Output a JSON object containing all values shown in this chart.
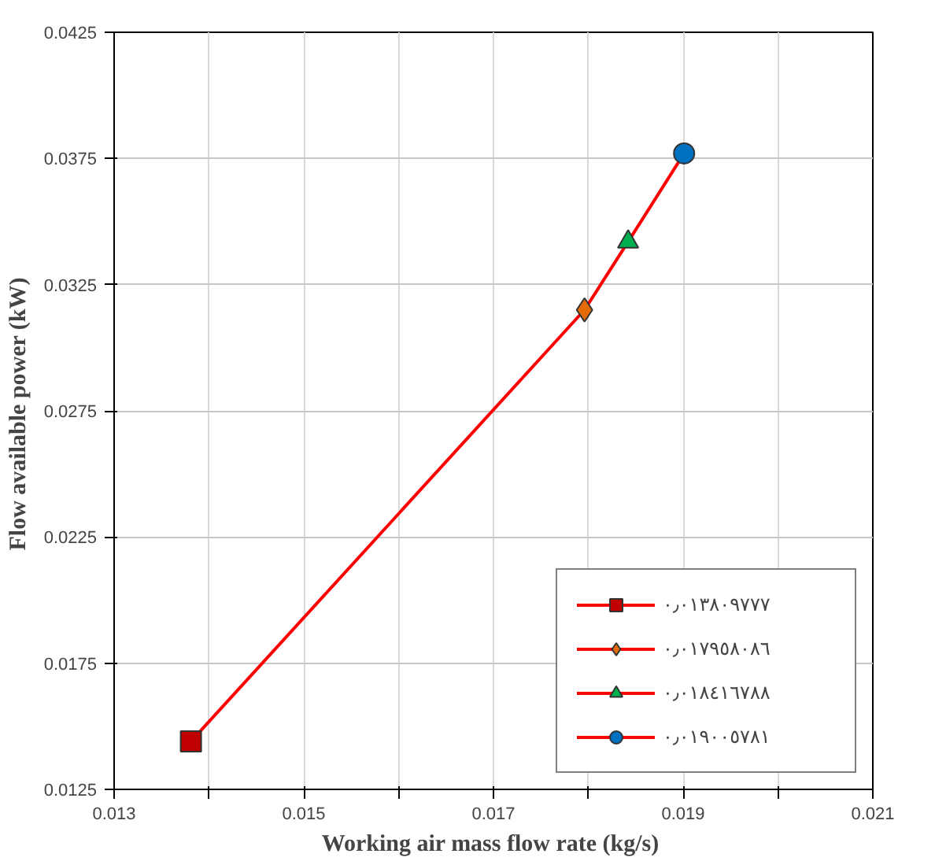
{
  "chart_data": {
    "type": "line",
    "xlabel": "Working air mass flow rate  (kg/s)",
    "ylabel": "Flow available power  (kW)",
    "xlim": [
      0.013,
      0.021
    ],
    "ylim": [
      0.0125,
      0.0425
    ],
    "xticks": [
      0.013,
      {
        "value": 0.014,
        "label": null
      },
      0.015,
      {
        "value": 0.016,
        "label": null
      },
      0.017,
      {
        "value": 0.018,
        "label": null
      },
      0.019,
      {
        "value": 0.02,
        "label": null
      },
      0.021
    ],
    "yticks": [
      0.0125,
      0.0175,
      0.0225,
      0.0275,
      0.0325,
      0.0375,
      0.0425
    ],
    "grid": true,
    "legend": "bottom right",
    "line_style": "solid",
    "series": [
      {
        "color": "#ff0000",
        "marker": "none",
        "x": [
          0.01381,
          0.01796,
          0.01842,
          0.01901
        ],
        "values": [
          0.0144,
          0.0315,
          0.0342,
          0.0377
        ]
      },
      {
        "type": "scatter",
        "name": "٠٫٠١٣٨٠٩٧٧٧",
        "color": "#c00000",
        "marker": "square",
        "x": [
          0.01381
        ],
        "values": [
          0.0144
        ]
      },
      {
        "type": "scatter",
        "name": "٠٫٠١٧٩٥٨٠٨٦",
        "color": "#e36c09",
        "marker": "diamond",
        "x": [
          0.01796
        ],
        "values": [
          0.0315
        ]
      },
      {
        "type": "scatter",
        "name": "٠٫٠١٨٤١٦٧٨٨",
        "color": "#00b050",
        "marker": "triangle",
        "x": [
          0.01842
        ],
        "values": [
          0.0342
        ]
      },
      {
        "type": "scatter",
        "name": "٠٫٠١٩٠٠٥٧٨١",
        "color": "#0070c0",
        "marker": "circle",
        "x": [
          0.01901
        ],
        "values": [
          0.0377
        ]
      }
    ]
  }
}
